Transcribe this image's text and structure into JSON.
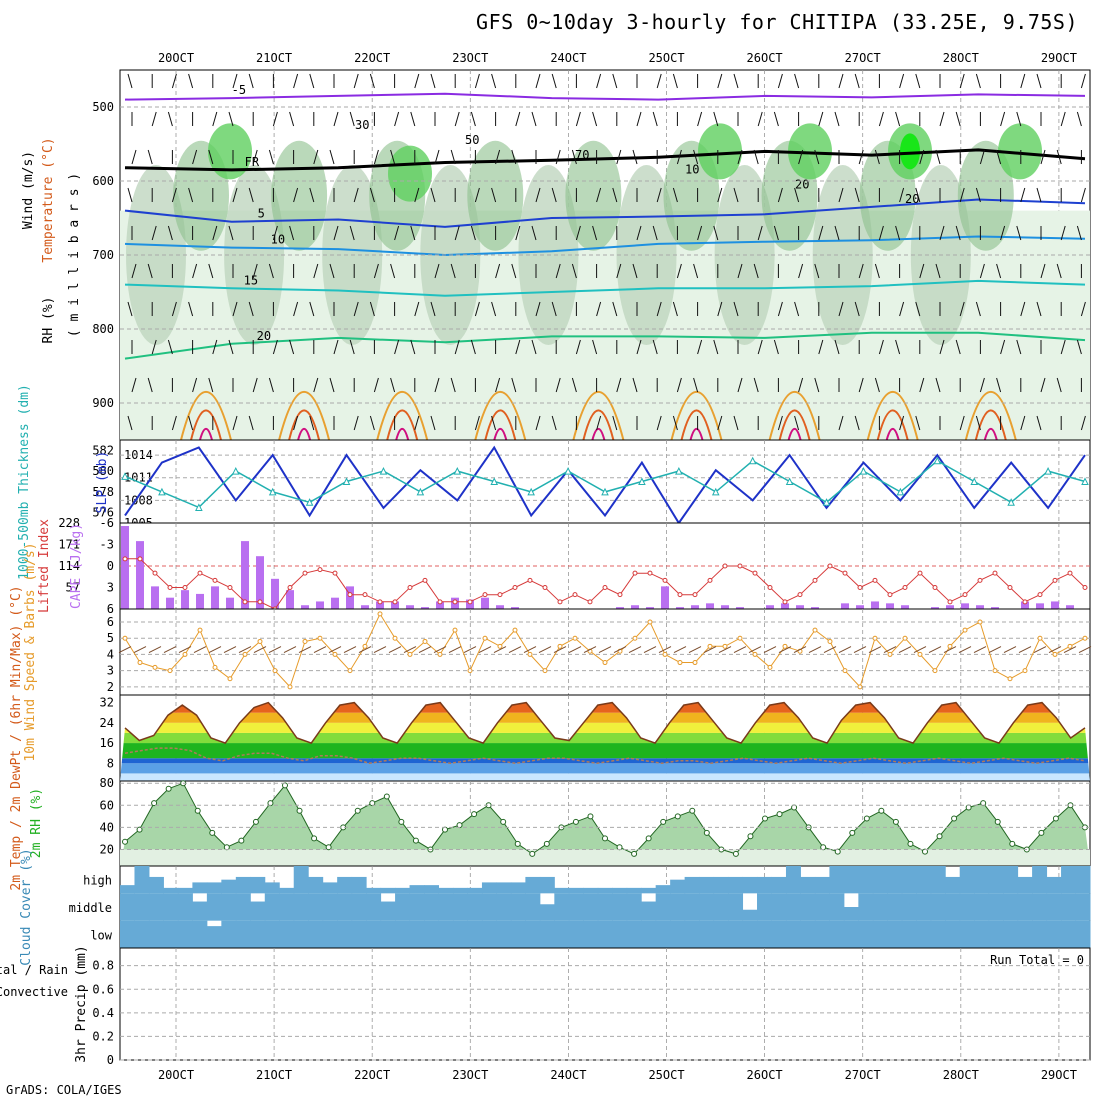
{
  "title": "GFS 0~10day 3-hourly for CHITIPA (33.25E, 9.75S)",
  "footer": "GrADS: COLA/IGES",
  "run_total": "Run Total = 0",
  "colors": {
    "rh_light": "#e6f3e6",
    "rh_mid": "#bfd6bf",
    "rh_dark": "#8cbf8c",
    "rh_green": "#5fcf5f",
    "rh_bright": "#19e619",
    "slp": "#1e32c8",
    "thick": "#22b0b0",
    "cape": "#b96ff0",
    "li": "#d63a3a",
    "wind": "#e69b2a",
    "rh2m": "#22b022",
    "cloud": "#66aad6"
  },
  "chart_data": [
    {
      "type": "line",
      "panel": "vertical_profile",
      "x": [
        "20OCT",
        "21OCT",
        "22OCT",
        "23OCT",
        "24OCT",
        "25OCT",
        "26OCT",
        "27OCT",
        "28OCT",
        "29OCT"
      ],
      "xlabel": "",
      "ylabel": "millibars",
      "yticks": [
        500,
        600,
        700,
        800,
        900
      ],
      "ylim": [
        950,
        450
      ],
      "side_labels": [
        "Wind (m/s)",
        "Temperature (°C)",
        "RH (%)"
      ],
      "y_axis_title": "( m i l l i b a r s )",
      "series": [
        {
          "name": "-5C isotherm",
          "label": "-5",
          "color": "#8a2be2",
          "values": [
            490,
            488,
            485,
            482,
            488,
            490,
            485,
            487,
            483,
            485
          ]
        },
        {
          "name": "freezing level",
          "label": "FR",
          "color": "#000000",
          "values": [
            582,
            585,
            582,
            575,
            572,
            568,
            560,
            565,
            558,
            570
          ]
        },
        {
          "name": "5C isotherm",
          "label": "5",
          "color": "#1e40d0",
          "values": [
            640,
            655,
            652,
            662,
            650,
            648,
            645,
            635,
            625,
            630
          ]
        },
        {
          "name": "10C isotherm",
          "label": "10",
          "color": "#1e90e0",
          "values": [
            685,
            690,
            692,
            700,
            695,
            685,
            682,
            680,
            675,
            678
          ]
        },
        {
          "name": "15C isotherm",
          "label": "15",
          "color": "#20c0c0",
          "values": [
            740,
            745,
            748,
            755,
            750,
            745,
            745,
            742,
            735,
            740
          ]
        },
        {
          "name": "20C isotherm",
          "label": "20",
          "color": "#20c080",
          "values": [
            840,
            820,
            812,
            818,
            810,
            810,
            812,
            805,
            805,
            815
          ]
        }
      ],
      "contour_labels": [
        "30",
        "50",
        "70",
        "10",
        "20",
        "20"
      ]
    },
    {
      "type": "line",
      "panel": "slp_thickness",
      "left_label": "1000-500mb Thickness (dm)",
      "right_label": "SLP (mb)",
      "left_ticks": [
        576,
        578,
        580,
        582
      ],
      "right_ticks": [
        1005,
        1008,
        1011,
        1014
      ],
      "series": [
        {
          "name": "SLP (mb)",
          "color": "#1e32c8",
          "values": [
            1006,
            1013,
            1015,
            1008,
            1014,
            1006,
            1014,
            1007,
            1012,
            1008,
            1015,
            1006,
            1012,
            1006,
            1013,
            1005,
            1012,
            1008,
            1014,
            1007,
            1013,
            1008,
            1014,
            1007,
            1013,
            1007,
            1014
          ]
        },
        {
          "name": "1000-500mb Thickness (dm)",
          "color": "#22b0b0",
          "values": [
            579.5,
            578,
            576.5,
            580,
            578,
            577,
            579,
            580,
            578,
            580,
            579,
            578,
            580,
            578,
            579,
            580,
            578,
            581,
            579,
            577,
            580,
            578,
            581,
            579,
            577,
            580,
            579
          ]
        }
      ]
    },
    {
      "type": "bar",
      "panel": "cape_li",
      "left_label": "Lifted Index",
      "right_label": "CAPE (J/kg)",
      "left_ticks": [
        -6,
        -3,
        0,
        3,
        6
      ],
      "right_ticks": [
        57,
        114,
        171,
        228
      ],
      "series": [
        {
          "name": "CAPE (J/kg)",
          "color": "#b96ff0",
          "values": [
            220,
            180,
            60,
            30,
            50,
            40,
            60,
            30,
            180,
            140,
            80,
            50,
            10,
            20,
            30,
            60,
            10,
            20,
            20,
            10,
            5,
            20,
            30,
            25,
            30,
            10,
            5,
            0,
            0,
            0,
            0,
            0,
            0,
            5,
            10,
            5,
            60,
            5,
            10,
            15,
            10,
            5,
            0,
            10,
            15,
            10,
            5,
            0,
            15,
            10,
            20,
            15,
            10,
            0,
            5,
            10,
            15,
            10,
            5,
            0,
            20,
            15,
            20,
            10,
            0
          ]
        },
        {
          "name": "Lifted Index",
          "color": "#d63a3a",
          "values": [
            -1,
            -1,
            1,
            3,
            3,
            1,
            2,
            3,
            5,
            5,
            6,
            3,
            1,
            0.5,
            1,
            4,
            4,
            5,
            5,
            3,
            2,
            5,
            5,
            5,
            4,
            4,
            3,
            2,
            3,
            5,
            4,
            5,
            3,
            4,
            1,
            1,
            2,
            4,
            4,
            2,
            0,
            0,
            1,
            3,
            5,
            4,
            2,
            0,
            1,
            3,
            2,
            4,
            3,
            1,
            3,
            5,
            4,
            2,
            1,
            3,
            5,
            4,
            2,
            1,
            3
          ]
        }
      ]
    },
    {
      "type": "line",
      "panel": "wind10m",
      "left_label": "10m Wind Speed & Barbs (m/s)",
      "yticks": [
        2,
        3,
        4,
        5,
        6
      ],
      "series": [
        {
          "name": "10m Wind Speed",
          "color": "#e69b2a",
          "values": [
            5,
            3.5,
            3.2,
            3,
            4,
            5.5,
            3.2,
            2.5,
            4,
            4.8,
            3,
            2,
            4.8,
            5,
            4,
            3,
            4.5,
            6.5,
            5,
            4,
            4.8,
            4,
            5.5,
            3,
            5,
            4.5,
            5.5,
            4,
            3,
            4.5,
            5,
            4.2,
            3.5,
            4.2,
            5,
            6,
            4,
            3.5,
            3.5,
            4.5,
            4.5,
            5,
            4,
            3.2,
            4.5,
            4.2,
            5.5,
            4.8,
            3,
            2,
            5,
            4,
            5,
            4,
            3,
            4.5,
            5.5,
            6,
            3,
            2.5,
            3,
            5,
            4,
            4.5,
            5
          ]
        }
      ]
    },
    {
      "type": "area",
      "panel": "temp2m",
      "left_label": "2m Temp / 2m DewPt / (6hr Min/Max) (°C)",
      "yticks": [
        8,
        16,
        24,
        32
      ],
      "series": [
        {
          "name": "2m Temp",
          "color": "#7a3a1a",
          "values": [
            22,
            17,
            19,
            27,
            31,
            27,
            18,
            16,
            24,
            30,
            32,
            26,
            18,
            16,
            24,
            31,
            32,
            26,
            18,
            16,
            24,
            31,
            32,
            25,
            18,
            16,
            24,
            31,
            32,
            25,
            18,
            17,
            24,
            31,
            32,
            26,
            18,
            16,
            24,
            31,
            32,
            25,
            18,
            16,
            24,
            31,
            32,
            26,
            18,
            16,
            25,
            31,
            32,
            26,
            18,
            16,
            24,
            31,
            32,
            25,
            18,
            16,
            24,
            31,
            32,
            26,
            18,
            22
          ]
        },
        {
          "name": "2m DewPt",
          "color": "#b07a5a",
          "values": [
            12,
            13,
            14,
            14,
            13,
            10,
            9,
            11,
            12,
            12,
            10,
            9,
            11,
            11,
            10,
            8,
            9,
            10,
            10,
            9,
            8,
            9,
            10,
            9,
            8,
            9,
            10,
            10,
            9,
            8,
            9,
            10,
            9,
            8,
            9,
            9,
            8,
            9,
            10,
            9,
            8,
            9,
            10,
            9,
            8,
            9,
            10,
            9,
            8,
            9,
            10,
            9,
            8,
            9,
            10,
            9,
            8,
            9,
            10,
            9
          ]
        }
      ]
    },
    {
      "type": "area",
      "panel": "rh2m",
      "left_label": "2m RH (%)",
      "yticks": [
        20,
        40,
        60,
        80
      ],
      "series": [
        {
          "name": "2m RH",
          "color": "#22b022",
          "values": [
            27,
            38,
            62,
            75,
            80,
            55,
            35,
            22,
            28,
            45,
            62,
            78,
            55,
            30,
            22,
            40,
            55,
            62,
            68,
            45,
            28,
            20,
            38,
            42,
            52,
            60,
            45,
            25,
            16,
            25,
            40,
            45,
            50,
            30,
            22,
            16,
            30,
            45,
            50,
            55,
            35,
            20,
            16,
            32,
            48,
            52,
            58,
            40,
            22,
            18,
            35,
            48,
            55,
            45,
            25,
            18,
            32,
            48,
            58,
            62,
            45,
            25,
            20,
            35,
            48,
            60,
            40
          ]
        }
      ]
    },
    {
      "type": "bar",
      "panel": "cloud",
      "left_label": "Cloud Cover (%)",
      "levels": [
        "high",
        "middle",
        "low"
      ],
      "series": [
        {
          "name": "high",
          "color": "#66aad6",
          "values": [
            30,
            100,
            60,
            20,
            20,
            40,
            40,
            50,
            60,
            60,
            40,
            20,
            100,
            60,
            40,
            60,
            60,
            20,
            20,
            20,
            30,
            30,
            20,
            20,
            20,
            40,
            40,
            40,
            60,
            60,
            20,
            20,
            20,
            20,
            20,
            20,
            20,
            30,
            50,
            60,
            60,
            60,
            60,
            60,
            60,
            60,
            100,
            60,
            60,
            100,
            100,
            100,
            100,
            100,
            100,
            100,
            100,
            60,
            100,
            100,
            100,
            100,
            60,
            100,
            60,
            100,
            100
          ]
        },
        {
          "name": "middle",
          "color": "#66aad6",
          "values": [
            100,
            100,
            100,
            100,
            100,
            70,
            100,
            100,
            100,
            70,
            100,
            100,
            100,
            100,
            100,
            100,
            100,
            100,
            70,
            100,
            100,
            100,
            100,
            100,
            100,
            100,
            100,
            100,
            100,
            60,
            100,
            100,
            100,
            100,
            100,
            100,
            70,
            100,
            100,
            100,
            100,
            100,
            100,
            40,
            100,
            100,
            100,
            100,
            100,
            100,
            50,
            100,
            100,
            100,
            100,
            100,
            100,
            100,
            100,
            100,
            100,
            100,
            100,
            100,
            100,
            100,
            100
          ]
        },
        {
          "name": "low",
          "color": "#66aad6",
          "values": [
            100,
            100,
            100,
            100,
            100,
            100,
            80,
            100,
            100,
            100,
            100,
            100,
            100,
            100,
            100,
            100,
            100,
            100,
            100,
            100,
            100,
            100,
            100,
            100,
            100,
            100,
            100,
            100,
            100,
            100,
            100,
            100,
            100,
            100,
            100,
            100,
            100,
            100,
            100,
            100,
            100,
            100,
            100,
            100,
            100,
            100,
            100,
            100,
            100,
            100,
            100,
            100,
            100,
            100,
            100,
            100,
            100,
            100,
            100,
            100,
            100,
            100,
            100,
            100,
            100,
            100,
            100
          ]
        }
      ]
    },
    {
      "type": "bar",
      "panel": "precip",
      "left_label": "3hr Precip (mm)",
      "legend": [
        "Total / Rain",
        "Convective"
      ],
      "yticks": [
        0,
        0.2,
        0.4,
        0.6,
        0.8
      ],
      "series": [
        {
          "name": "Total / Rain",
          "color": "#22b022",
          "values": [
            0,
            0,
            0,
            0,
            0,
            0,
            0,
            0,
            0,
            0
          ]
        },
        {
          "name": "Convective",
          "color": "#d63a3a",
          "values": [
            0,
            0,
            0,
            0,
            0,
            0,
            0,
            0,
            0,
            0
          ]
        }
      ]
    }
  ]
}
